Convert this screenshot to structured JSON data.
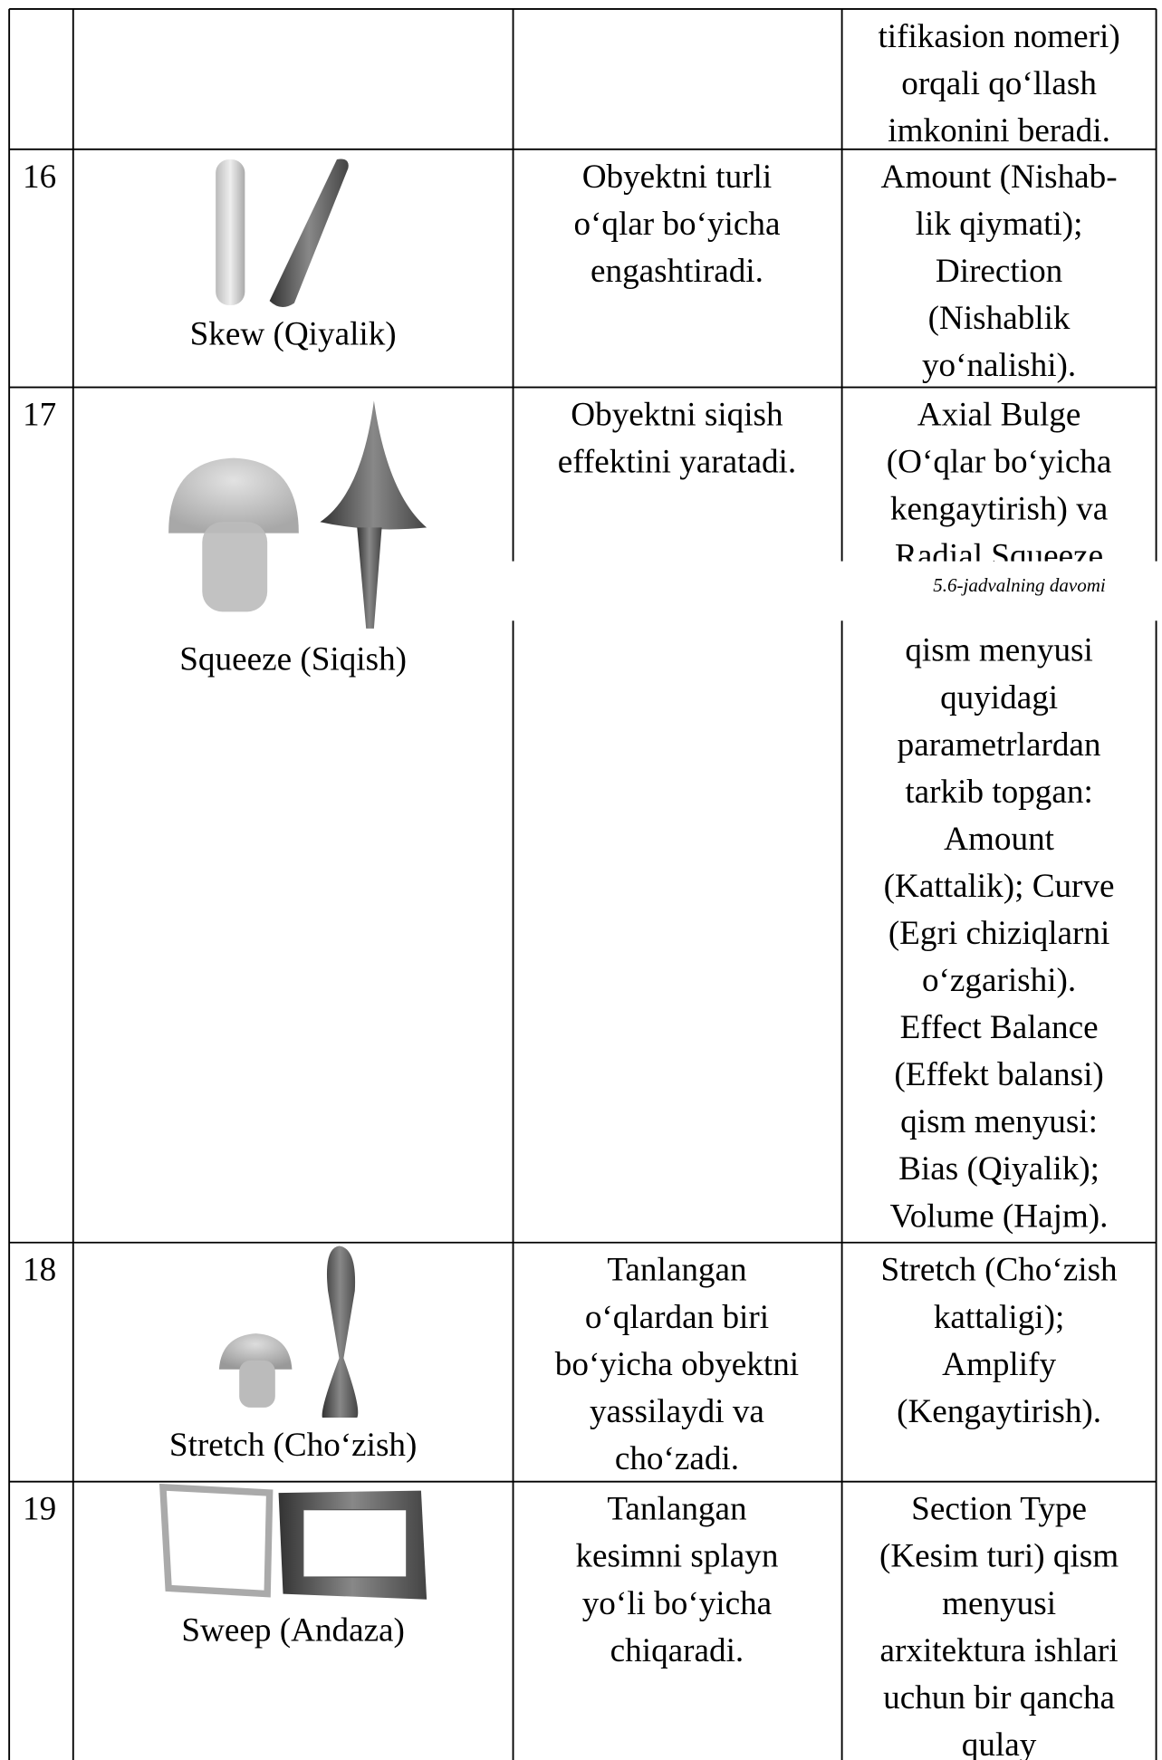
{
  "caption": "5.6-jadvalning davomi",
  "table": {
    "rows": [
      {
        "parameters": [
          "tifikasion nomeri)",
          "orqali qo‘llash",
          "imkonini beradi."
        ]
      },
      {
        "number": "16",
        "name": "Skew (Qiyalik)",
        "description": [
          "Obyektni turli",
          "o‘qlar bo‘yicha",
          "engashtiradi."
        ],
        "parameters": [
          "Amount (Nishab-",
          "lik qiymati);",
          "Direction",
          "(Nishablik",
          "yo‘nalishi)."
        ]
      },
      {
        "number": "17",
        "name": "Squeeze (Siqish)",
        "description": [
          "Obyektni siqish",
          "effektini yaratadi."
        ],
        "parameters": [
          "Axial Bulge",
          "(O‘qlar bo‘yicha",
          "kengaytirish) va",
          "Radial Squeeze"
        ],
        "parameters_continued": [
          "qism menyusi",
          "quyidagi",
          "parametrlardan",
          "tarkib topgan:",
          "Amount",
          "(Kattalik); Curve",
          "(Egri chiziqlarni",
          "o‘zgarishi).",
          "Effect Balance",
          "(Effekt balansi)",
          "qism menyusi:",
          "Bias (Qiyalik);",
          "Volume (Hajm)."
        ]
      },
      {
        "number": "18",
        "name": "Stretch (Cho‘zish)",
        "description": [
          "Tanlangan",
          "o‘qlardan biri",
          "bo‘yicha obyektni",
          "yassilaydi va",
          "cho‘zadi."
        ],
        "parameters": [
          "Stretch (Cho‘zish",
          "kattaligi);",
          "Amplify",
          "(Kengaytirish)."
        ]
      },
      {
        "number": "19",
        "name": "Sweep (Andaza)",
        "description": [
          "Tanlangan",
          "kesimni splayn",
          "yo‘li bo‘yicha",
          "chiqaradi."
        ],
        "parameters": [
          "Section Type",
          "(Kesim turi) qism",
          "menyusi",
          "arxitektura ishlari",
          "uchun bir qancha",
          "qulay"
        ]
      }
    ]
  }
}
